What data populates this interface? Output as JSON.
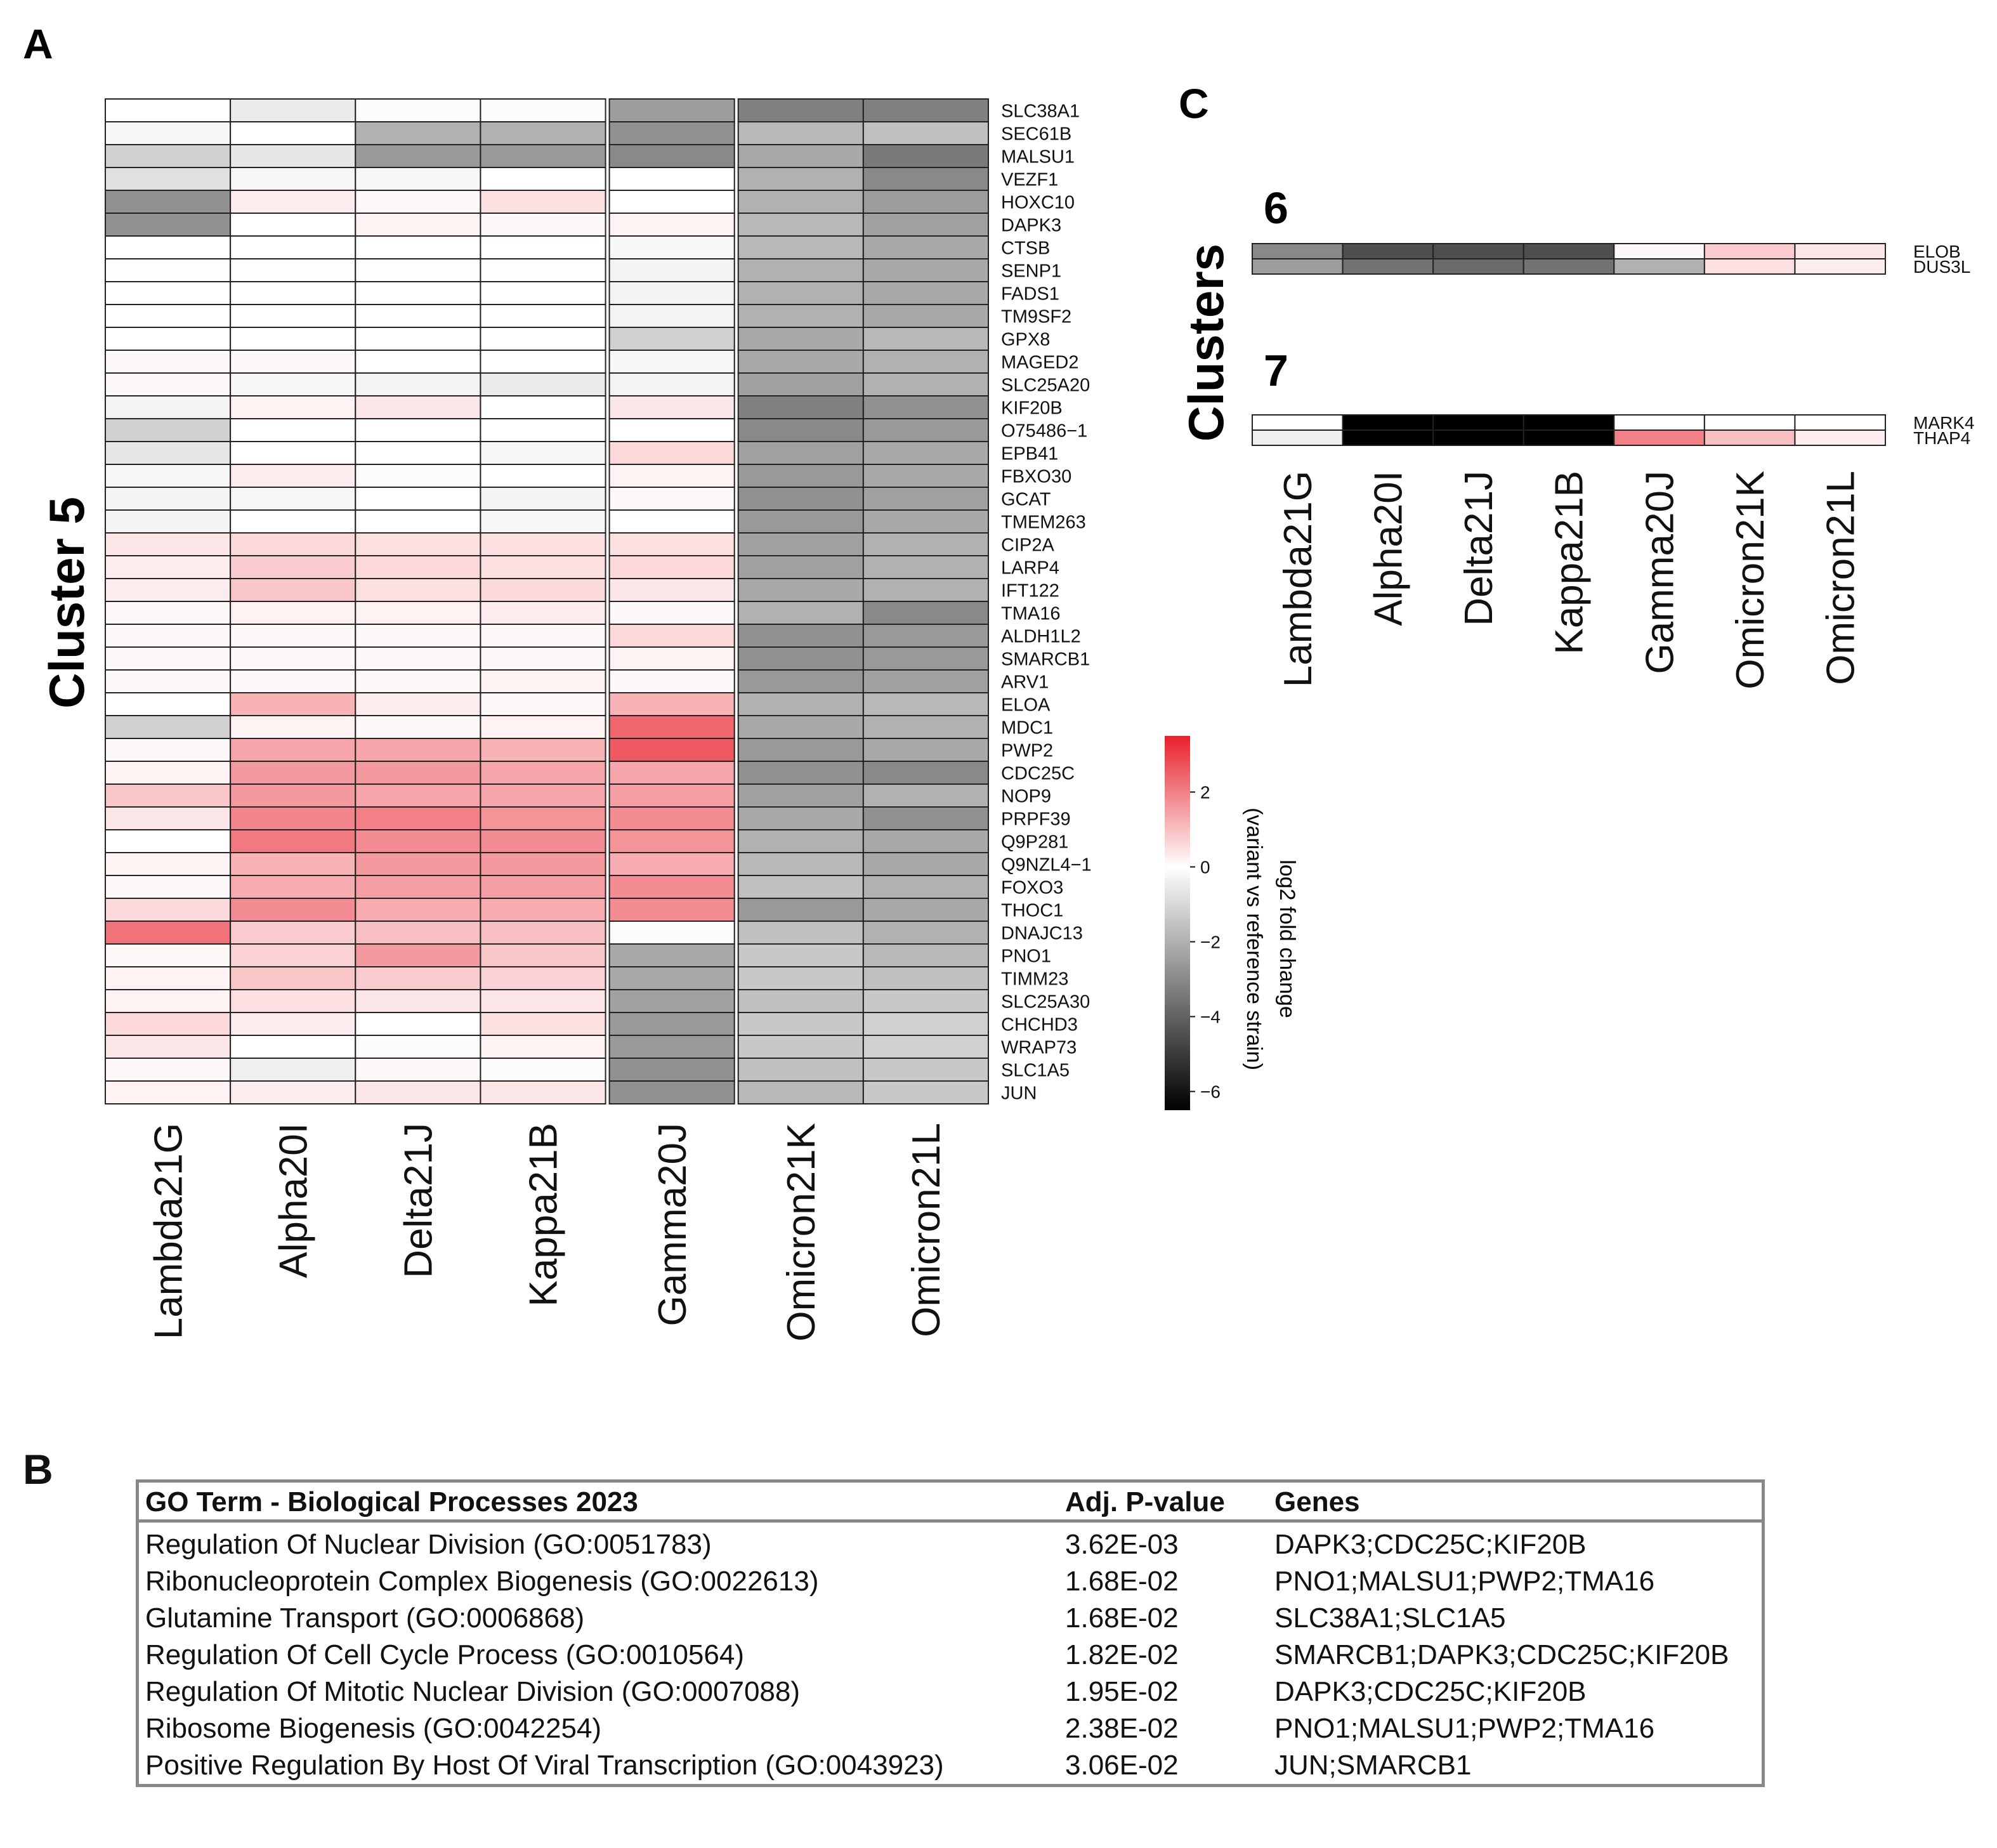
{
  "panel_labels": {
    "a": "A",
    "b": "B",
    "c": "C"
  },
  "cluster5_label": "Cluster 5",
  "clusters_label": "Clusters",
  "colorbar": {
    "title_line1": "log2 fold change",
    "title_line2": "(variant vs reference strain)",
    "ticks": [
      "2",
      "0",
      "−2",
      "−4",
      "−6"
    ],
    "tick_values": [
      2,
      0,
      -2,
      -4,
      -6
    ],
    "range": [
      -6.5,
      3.5
    ],
    "colors": {
      "low": "#000000",
      "mid": "#ffffff",
      "high": "#e8202b"
    }
  },
  "chart_data": [
    {
      "type": "heatmap",
      "title": "Cluster 5",
      "columns": [
        "Lambda21G",
        "Alpha20I",
        "Delta21J",
        "Kappa21B",
        "Gamma20J",
        "Omicron21K",
        "Omicron21L"
      ],
      "column_groups": [
        [
          0,
          3
        ],
        [
          4,
          4
        ],
        [
          5,
          6
        ]
      ],
      "rows": [
        "SLC38A1",
        "SEC61B",
        "MALSU1",
        "VEZF1",
        "HOXC10",
        "DAPK3",
        "CTSB",
        "SENP1",
        "FADS1",
        "TM9SF2",
        "GPX8",
        "MAGED2",
        "SLC25A20",
        "KIF20B",
        "O75486−1",
        "EPB41",
        "FBXO30",
        "GCAT",
        "TMEM263",
        "CIP2A",
        "LARP4",
        "IFT122",
        "TMA16",
        "ALDH1L2",
        "SMARCB1",
        "ARV1",
        "ELOA",
        "MDC1",
        "PWP2",
        "CDC25C",
        "NOP9",
        "PRPF39",
        "Q9P281",
        "Q9NZL4−1",
        "FOXO3",
        "THOC1",
        "DNAJC13",
        "PNO1",
        "TIMM23",
        "SLC25A30",
        "CHCHD3",
        "WRAP73",
        "SLC1A5",
        "JUN"
      ],
      "values": [
        [
          0.0,
          -0.5,
          -0.1,
          -0.1,
          -2.5,
          -3.2,
          -3.2
        ],
        [
          -0.2,
          0.0,
          -2.0,
          -2.0,
          -2.8,
          -1.8,
          -1.6
        ],
        [
          -1.2,
          -0.6,
          -2.6,
          -2.6,
          -3.0,
          -2.2,
          -3.4
        ],
        [
          -0.8,
          -0.2,
          -0.2,
          0.0,
          0.0,
          -2.0,
          -3.0
        ],
        [
          -2.8,
          0.3,
          0.1,
          0.5,
          0.0,
          -2.0,
          -2.5
        ],
        [
          -2.8,
          0.0,
          0.2,
          0.1,
          0.2,
          -1.8,
          -2.4
        ],
        [
          0.0,
          0.0,
          0.0,
          0.0,
          -0.2,
          -1.8,
          -2.2
        ],
        [
          0.05,
          0.05,
          0.05,
          0.05,
          -0.3,
          -2.0,
          -2.2
        ],
        [
          0.0,
          0.0,
          0.0,
          0.0,
          -0.3,
          -2.0,
          -2.2
        ],
        [
          0.0,
          0.0,
          0.0,
          0.0,
          -0.3,
          -2.0,
          -2.2
        ],
        [
          0.0,
          0.0,
          0.0,
          0.0,
          -1.2,
          -2.2,
          -1.8
        ],
        [
          0.1,
          0.1,
          0.0,
          0.0,
          -0.2,
          -2.2,
          -2.0
        ],
        [
          0.1,
          -0.2,
          -0.3,
          -0.5,
          -0.3,
          -2.4,
          -2.0
        ],
        [
          -0.3,
          0.2,
          0.4,
          0.0,
          0.4,
          -3.2,
          -2.8
        ],
        [
          -1.2,
          0.0,
          0.0,
          0.0,
          0.0,
          -3.0,
          -2.6
        ],
        [
          -0.6,
          0.0,
          0.0,
          -0.2,
          0.6,
          -2.4,
          -2.2
        ],
        [
          -0.2,
          0.3,
          -0.1,
          0.0,
          0.2,
          -2.6,
          -2.2
        ],
        [
          -0.3,
          -0.2,
          0.0,
          -0.3,
          0.1,
          -2.8,
          -2.4
        ],
        [
          -0.3,
          0.0,
          0.0,
          -0.2,
          0.0,
          -2.6,
          -2.2
        ],
        [
          0.4,
          0.6,
          0.5,
          0.5,
          0.5,
          -2.4,
          -2.0
        ],
        [
          0.3,
          0.8,
          0.6,
          0.5,
          0.6,
          -2.4,
          -2.0
        ],
        [
          0.3,
          0.9,
          0.5,
          0.6,
          0.4,
          -2.2,
          -2.0
        ],
        [
          0.1,
          0.2,
          0.2,
          0.3,
          0.1,
          -2.0,
          -3.0
        ],
        [
          0.1,
          0.1,
          0.1,
          0.1,
          0.6,
          -2.8,
          -2.6
        ],
        [
          0.1,
          0.1,
          0.1,
          0.1,
          0.2,
          -2.8,
          -2.6
        ],
        [
          0.1,
          0.1,
          0.1,
          0.2,
          0.1,
          -2.6,
          -2.4
        ],
        [
          0.0,
          1.2,
          0.3,
          0.1,
          1.2,
          -2.0,
          -1.8
        ],
        [
          -1.2,
          0.2,
          0.1,
          0.2,
          2.4,
          -2.2,
          -2.0
        ],
        [
          0.1,
          1.4,
          1.4,
          1.2,
          2.6,
          -2.6,
          -2.2
        ],
        [
          0.2,
          1.6,
          1.6,
          1.4,
          1.4,
          -2.8,
          -3.0
        ],
        [
          0.9,
          1.6,
          1.4,
          1.4,
          1.5,
          -2.4,
          -2.0
        ],
        [
          0.4,
          1.9,
          2.0,
          1.7,
          1.8,
          -2.2,
          -2.8
        ],
        [
          0.0,
          2.1,
          1.8,
          1.8,
          1.7,
          -2.0,
          -2.2
        ],
        [
          0.2,
          1.2,
          1.6,
          1.6,
          1.3,
          -1.8,
          -2.2
        ],
        [
          0.1,
          1.3,
          1.5,
          1.5,
          1.8,
          -1.6,
          -2.0
        ],
        [
          0.6,
          1.8,
          1.3,
          1.3,
          1.8,
          -2.6,
          -2.2
        ],
        [
          2.2,
          0.8,
          1.0,
          1.0,
          -0.1,
          -1.6,
          -2.0
        ],
        [
          0.1,
          0.7,
          1.6,
          0.9,
          -2.2,
          -1.4,
          -1.8
        ],
        [
          0.2,
          0.9,
          0.8,
          0.7,
          -2.2,
          -1.4,
          -1.6
        ],
        [
          0.2,
          0.5,
          0.4,
          0.4,
          -2.4,
          -1.6,
          -1.4
        ],
        [
          0.6,
          0.3,
          0.0,
          0.5,
          -2.6,
          -1.4,
          -1.2
        ],
        [
          0.4,
          0.0,
          -0.1,
          0.2,
          -2.6,
          -1.4,
          -1.2
        ],
        [
          0.1,
          -0.4,
          0.1,
          -0.1,
          -2.8,
          -1.6,
          -1.4
        ],
        [
          0.2,
          0.3,
          0.4,
          0.4,
          -2.8,
          -1.8,
          -1.4
        ]
      ]
    },
    {
      "type": "heatmap",
      "title": "6",
      "columns": [
        "Lambda21G",
        "Alpha20I",
        "Delta21J",
        "Kappa21B",
        "Gamma20J",
        "Omicron21K",
        "Omicron21L"
      ],
      "rows": [
        "ELOB",
        "DUS3L"
      ],
      "values": [
        [
          -3.0,
          -4.5,
          -4.5,
          -4.5,
          0.1,
          0.8,
          0.4
        ],
        [
          -2.5,
          -3.6,
          -3.8,
          -3.6,
          -2.0,
          0.5,
          0.3
        ]
      ]
    },
    {
      "type": "heatmap",
      "title": "7",
      "columns": [
        "Lambda21G",
        "Alpha20I",
        "Delta21J",
        "Kappa21B",
        "Gamma20J",
        "Omicron21K",
        "Omicron21L"
      ],
      "rows": [
        "MARK4",
        "THAP4"
      ],
      "values": [
        [
          0.0,
          -7.0,
          -7.0,
          -7.0,
          0.0,
          0.0,
          0.0
        ],
        [
          -0.4,
          -7.0,
          -7.0,
          -7.0,
          2.0,
          1.0,
          0.3
        ]
      ]
    }
  ],
  "go_table": {
    "headers": [
      "GO Term - Biological Processes 2023",
      "Adj. P-value",
      "Genes"
    ],
    "rows": [
      [
        "Regulation Of Nuclear Division (GO:0051783)",
        "3.62E-03",
        "DAPK3;CDC25C;KIF20B"
      ],
      [
        "Ribonucleoprotein Complex Biogenesis (GO:0022613)",
        "1.68E-02",
        "PNO1;MALSU1;PWP2;TMA16"
      ],
      [
        "Glutamine Transport (GO:0006868)",
        "1.68E-02",
        "SLC38A1;SLC1A5"
      ],
      [
        "Regulation Of Cell Cycle Process (GO:0010564)",
        "1.82E-02",
        "SMARCB1;DAPK3;CDC25C;KIF20B"
      ],
      [
        "Regulation Of Mitotic Nuclear Division (GO:0007088)",
        "1.95E-02",
        "DAPK3;CDC25C;KIF20B"
      ],
      [
        "Ribosome Biogenesis (GO:0042254)",
        "2.38E-02",
        "PNO1;MALSU1;PWP2;TMA16"
      ],
      [
        "Positive Regulation By Host Of Viral Transcription (GO:0043923)",
        "3.06E-02",
        "JUN;SMARCB1"
      ]
    ]
  }
}
